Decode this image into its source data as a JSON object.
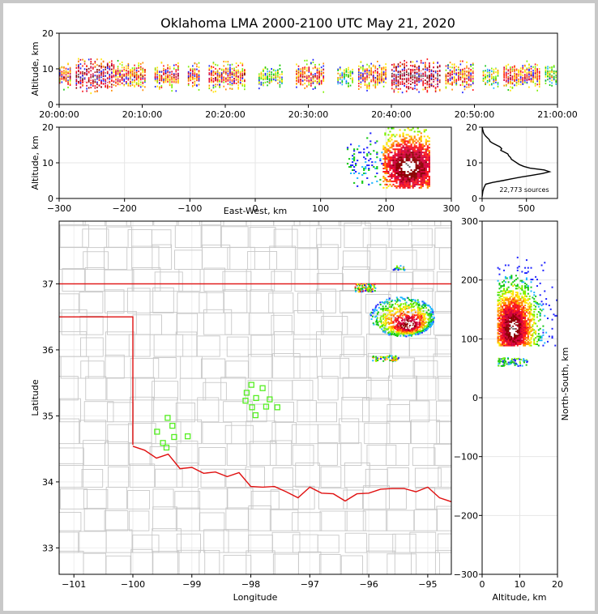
{
  "title": "Oklahoma LMA 2000-2100 UTC May 21, 2020",
  "chart_data": [
    {
      "id": "time-height",
      "type": "heatmap",
      "title": "",
      "xlabel": "",
      "ylabel": "Altitude, km",
      "xlim": [
        0,
        60
      ],
      "ylim": [
        0,
        20
      ],
      "xtick_labels": [
        "20:00:00",
        "20:10:00",
        "20:20:00",
        "20:30:00",
        "20:40:00",
        "20:50:00",
        "21:00:00"
      ],
      "ytick_labels": [
        "0",
        "10",
        "20"
      ],
      "activity_bursts_minutes": [
        {
          "start": 0.0,
          "end": 1.5,
          "level": 2
        },
        {
          "start": 2.0,
          "end": 6.5,
          "level": 3
        },
        {
          "start": 6.5,
          "end": 10.5,
          "level": 2
        },
        {
          "start": 11.5,
          "end": 14.5,
          "level": 2
        },
        {
          "start": 15.5,
          "end": 17.0,
          "level": 2
        },
        {
          "start": 18.0,
          "end": 22.5,
          "level": 2
        },
        {
          "start": 24.0,
          "end": 27.0,
          "level": 1
        },
        {
          "start": 28.5,
          "end": 32.0,
          "level": 2
        },
        {
          "start": 33.5,
          "end": 35.5,
          "level": 1
        },
        {
          "start": 36.0,
          "end": 39.5,
          "level": 2
        },
        {
          "start": 40.0,
          "end": 46.0,
          "level": 3
        },
        {
          "start": 46.5,
          "end": 50.0,
          "level": 2
        },
        {
          "start": 51.0,
          "end": 53.0,
          "level": 1
        },
        {
          "start": 53.5,
          "end": 58.0,
          "level": 2
        },
        {
          "start": 58.5,
          "end": 60.0,
          "level": 1
        }
      ]
    },
    {
      "id": "ew-height",
      "type": "heatmap",
      "xlabel": "East-West, km",
      "ylabel": "Altitude, km",
      "xlim": [
        -300,
        300
      ],
      "ylim": [
        0,
        20
      ],
      "xtick_labels": [
        "−300",
        "−200",
        "−100",
        "0",
        "100",
        "200",
        "300"
      ],
      "ytick_labels": [
        "0",
        "10",
        "20"
      ],
      "core_center": {
        "x": 235,
        "z": 9
      },
      "extent": {
        "xmin": 140,
        "xmax": 265,
        "zmin": 3,
        "zmax": 20
      }
    },
    {
      "id": "altitude-histogram",
      "type": "line",
      "xlim": [
        0,
        850
      ],
      "ylim": [
        0,
        20
      ],
      "xtick_labels": [
        "0",
        "500"
      ],
      "ytick_labels": [
        "0",
        "10",
        "20"
      ],
      "annotation": "22,773 sources",
      "altitude_km": [
        0.5,
        1,
        2,
        3,
        4,
        4.5,
        5,
        5.5,
        6,
        6.5,
        7,
        7.5,
        8,
        8.5,
        9,
        9.5,
        10,
        10.5,
        11,
        11.5,
        12,
        12.5,
        13,
        13.5,
        14,
        14.5,
        15,
        15.5,
        16,
        16.5,
        17,
        17.5,
        18,
        18.5,
        19,
        19.5,
        20
      ],
      "source_counts": [
        0,
        3,
        8,
        20,
        40,
        120,
        230,
        330,
        440,
        560,
        680,
        760,
        700,
        540,
        470,
        420,
        390,
        360,
        330,
        320,
        300,
        290,
        250,
        210,
        220,
        200,
        160,
        120,
        90,
        80,
        60,
        40,
        25,
        15,
        10,
        5,
        3
      ]
    },
    {
      "id": "plan-view",
      "type": "scatter",
      "xlabel": "Longitude",
      "ylabel": "Latitude",
      "xlim": [
        -101.25,
        -94.6
      ],
      "ylim": [
        32.6,
        37.95
      ],
      "xtick_labels": [
        "−101",
        "−100",
        "−99",
        "−98",
        "−97",
        "−96",
        "−95"
      ],
      "ytick_labels": [
        "33",
        "34",
        "35",
        "36",
        "37"
      ],
      "stations": [
        {
          "lon": -99.41,
          "lat": 34.97
        },
        {
          "lon": -99.33,
          "lat": 34.85
        },
        {
          "lon": -99.59,
          "lat": 34.76
        },
        {
          "lon": -99.3,
          "lat": 34.68
        },
        {
          "lon": -99.07,
          "lat": 34.69
        },
        {
          "lon": -99.49,
          "lat": 34.59
        },
        {
          "lon": -99.43,
          "lat": 34.52
        },
        {
          "lon": -97.99,
          "lat": 35.47
        },
        {
          "lon": -97.8,
          "lat": 35.42
        },
        {
          "lon": -98.07,
          "lat": 35.35
        },
        {
          "lon": -97.91,
          "lat": 35.27
        },
        {
          "lon": -97.68,
          "lat": 35.25
        },
        {
          "lon": -98.09,
          "lat": 35.23
        },
        {
          "lon": -97.74,
          "lat": 35.14
        },
        {
          "lon": -97.55,
          "lat": 35.13
        },
        {
          "lon": -97.98,
          "lat": 35.13
        },
        {
          "lon": -97.92,
          "lat": 35.01
        }
      ],
      "storm_core": {
        "lon": -95.3,
        "lat": 36.35
      }
    },
    {
      "id": "ns-height",
      "type": "heatmap",
      "xlabel": "Altitude, km",
      "ylabel": "North-South, km",
      "xlim": [
        0,
        20
      ],
      "ylim": [
        -300,
        300
      ],
      "xtick_labels": [
        "0",
        "10",
        "20"
      ],
      "ytick_labels": [
        "−300",
        "−200",
        "−100",
        "0",
        "100",
        "200",
        "300"
      ],
      "core_center": {
        "alt": 8,
        "ns": 120
      }
    }
  ]
}
